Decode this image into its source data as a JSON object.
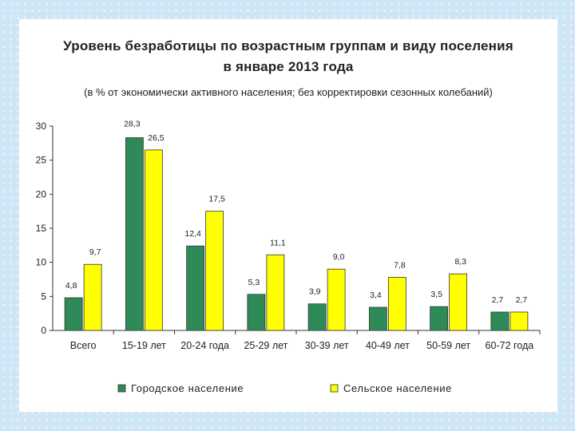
{
  "chart_data": {
    "type": "bar",
    "title": "Уровень безработицы по возрастным группам и виду поселения",
    "title_line2": "в январе 2013 года",
    "subtitle": "(в  % от экономически активного населения; без корректировки сезонных колебаний)",
    "categories": [
      "Всего",
      "15-19 лет",
      "20-24 года",
      "25-29 лет",
      "30-39 лет",
      "40-49 лет",
      "50-59 лет",
      "60-72 года"
    ],
    "series": [
      {
        "name": "Городское население",
        "color": "#2e8b57",
        "values": [
          4.8,
          28.3,
          12.4,
          5.3,
          3.9,
          3.4,
          3.5,
          2.7
        ],
        "labels": [
          "4,8",
          "28,3",
          "12,4",
          "5,3",
          "3,9",
          "3,4",
          "3,5",
          "2,7"
        ]
      },
      {
        "name": "Сельское население",
        "color": "#ffff00",
        "values": [
          9.7,
          26.5,
          17.5,
          11.1,
          9.0,
          7.8,
          8.3,
          2.7
        ],
        "labels": [
          "9,7",
          "26,5",
          "17,5",
          "11,1",
          "9,0",
          "7,8",
          "8,3",
          "2,7"
        ]
      }
    ],
    "ylim": [
      0,
      30
    ],
    "yticks": [
      0,
      5,
      10,
      15,
      20,
      25,
      30
    ],
    "legend": "bottom",
    "grid": false
  }
}
